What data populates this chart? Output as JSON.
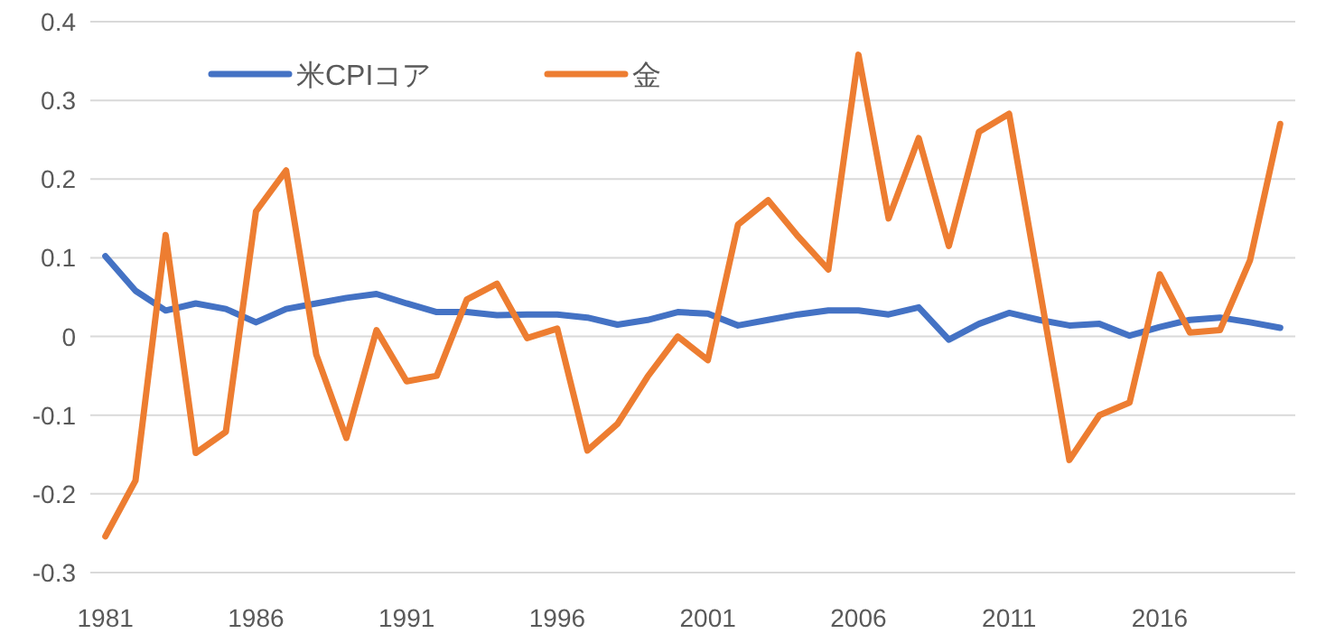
{
  "chart_data": {
    "type": "line",
    "categories": [
      "1981",
      null,
      null,
      null,
      null,
      "1986",
      null,
      null,
      null,
      null,
      "1991",
      null,
      null,
      null,
      null,
      "1996",
      null,
      null,
      null,
      null,
      "2001",
      null,
      null,
      null,
      null,
      "2006",
      null,
      null,
      null,
      null,
      "2011",
      null,
      null,
      null,
      null,
      "2016",
      null,
      null,
      null,
      null
    ],
    "series": [
      {
        "name": "米CPIコア",
        "color": "#4472c4",
        "values": [
          0.102,
          0.058,
          0.033,
          0.042,
          0.035,
          0.018,
          0.035,
          0.042,
          0.049,
          0.054,
          0.042,
          0.031,
          0.031,
          0.027,
          0.028,
          0.028,
          0.024,
          0.015,
          0.021,
          0.031,
          0.029,
          0.014,
          0.021,
          0.028,
          0.033,
          0.033,
          0.028,
          0.037,
          -0.004,
          0.016,
          0.03,
          0.021,
          0.014,
          0.016,
          0.001,
          0.012,
          0.021,
          0.024,
          0.018,
          0.011
        ]
      },
      {
        "name": "金",
        "color": "#ed7d31",
        "values": [
          -0.254,
          -0.183,
          0.129,
          -0.148,
          -0.121,
          0.159,
          0.211,
          -0.023,
          -0.129,
          0.008,
          -0.057,
          -0.05,
          0.047,
          0.067,
          -0.002,
          0.01,
          -0.145,
          -0.111,
          -0.051,
          0.0,
          -0.03,
          0.142,
          0.173,
          0.127,
          0.085,
          0.358,
          0.15,
          0.252,
          0.115,
          0.26,
          0.283,
          0.064,
          -0.157,
          -0.1,
          -0.084,
          0.079,
          0.005,
          0.008,
          0.097,
          0.27
        ]
      }
    ],
    "ylim": [
      -0.3,
      0.4
    ],
    "yticks": [
      -0.3,
      -0.2,
      -0.1,
      0,
      0.1,
      0.2,
      0.3,
      0.4
    ],
    "grid": "y",
    "legend": "top"
  }
}
